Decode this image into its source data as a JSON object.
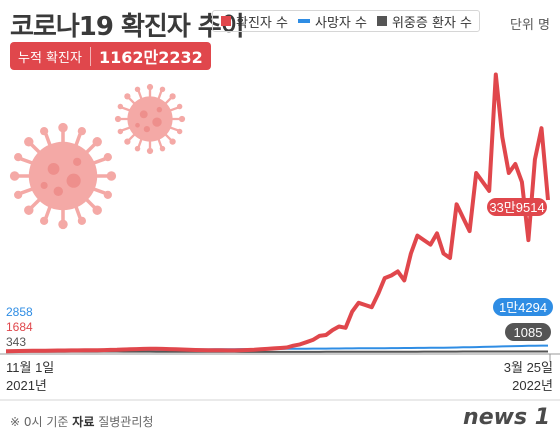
{
  "header": {
    "title": "코로나19 확진자 추이",
    "unit": "단위 명",
    "cumulative_label": "누적 확진자",
    "cumulative_value": "1162만2232"
  },
  "legend": [
    {
      "label": "확진자 수",
      "color": "#e0474c"
    },
    {
      "label": "사망자 수",
      "color": "#2f8de4"
    },
    {
      "label": "위중증 환자 수",
      "color": "#555555"
    }
  ],
  "footer": {
    "note": "※ 0시 기준",
    "source_label": "자료",
    "source": "질병관리청",
    "logo": "news 1"
  },
  "chart_data": {
    "type": "line",
    "x_start_label": "11월 1일",
    "x_start_year": "2021년",
    "x_end_label": "3월 25일",
    "x_end_year": "2022년",
    "start_labels": [
      "2858",
      "1684",
      "343"
    ],
    "end_labels": [
      "33만9514",
      "1만4294",
      "1085"
    ],
    "ylim": [
      0,
      630000
    ],
    "series": [
      {
        "name": "확진자 수",
        "color": "#e0474c",
        "values": [
          1684,
          2000,
          2200,
          2400,
          2600,
          2700,
          2900,
          3100,
          3300,
          3400,
          3500,
          3600,
          3700,
          3800,
          4000,
          4200,
          4600,
          5000,
          5500,
          6000,
          6500,
          7000,
          7200,
          7100,
          7000,
          6500,
          6000,
          5500,
          5000,
          4500,
          4200,
          4000,
          3800,
          3700,
          3600,
          3500,
          4000,
          4500,
          5000,
          6000,
          7000,
          8000,
          9000,
          10000,
          14000,
          17000,
          22000,
          27000,
          36000,
          38000,
          49000,
          57000,
          54000,
          90000,
          110000,
          105000,
          100000,
          130000,
          165000,
          171000,
          180000,
          160000,
          220000,
          260000,
          250000,
          240000,
          265000,
          220000,
          210000,
          330000,
          300000,
          270000,
          400000,
          380000,
          360000,
          620000,
          480000,
          400000,
          420000,
          380000,
          250000,
          430000,
          500000,
          339514
        ]
      },
      {
        "name": "사망자 수",
        "color": "#2f8de4",
        "values": [
          2858,
          2900,
          3000,
          3100,
          3200,
          3300,
          3400,
          3500,
          3600,
          3700,
          3800,
          3900,
          4000,
          4100,
          4200,
          4300,
          4400,
          4500,
          4600,
          4700,
          4800,
          4900,
          5000,
          5100,
          5200,
          5300,
          5400,
          5500,
          5600,
          5700,
          5800,
          5900,
          6000,
          6100,
          6200,
          6300,
          6400,
          6500,
          6600,
          6700,
          6800,
          6900,
          7000,
          7100,
          7200,
          7300,
          7400,
          7500,
          7600,
          7700,
          7800,
          7900,
          8000,
          8100,
          8200,
          8300,
          8400,
          8500,
          8600,
          8700,
          8800,
          8900,
          9000,
          9100,
          9200,
          9300,
          9500,
          9700,
          9900,
          10100,
          10400,
          10700,
          11000,
          11300,
          11600,
          12000,
          12400,
          12800,
          13200,
          13500,
          13800,
          14000,
          14200,
          14294
        ]
      },
      {
        "name": "위중증 환자 수",
        "color": "#555555",
        "values": [
          343,
          380,
          420,
          460,
          500,
          550,
          600,
          650,
          700,
          750,
          800,
          850,
          900,
          950,
          1000,
          1050,
          1100,
          1050,
          1000,
          950,
          900,
          850,
          800,
          750,
          700,
          650,
          600,
          550,
          500,
          450,
          420,
          400,
          380,
          360,
          350,
          340,
          330,
          320,
          300,
          290,
          280,
          270,
          270,
          270,
          280,
          290,
          300,
          310,
          320,
          350,
          380,
          400,
          420,
          450,
          480,
          500,
          520,
          550,
          580,
          600,
          650,
          700,
          750,
          780,
          800,
          850,
          880,
          900,
          950,
          1000,
          1050,
          1100,
          1150,
          1200,
          1200,
          1150,
          1100,
          1100,
          1080,
          1090,
          1095,
          1090,
          1088,
          1085
        ]
      }
    ]
  }
}
